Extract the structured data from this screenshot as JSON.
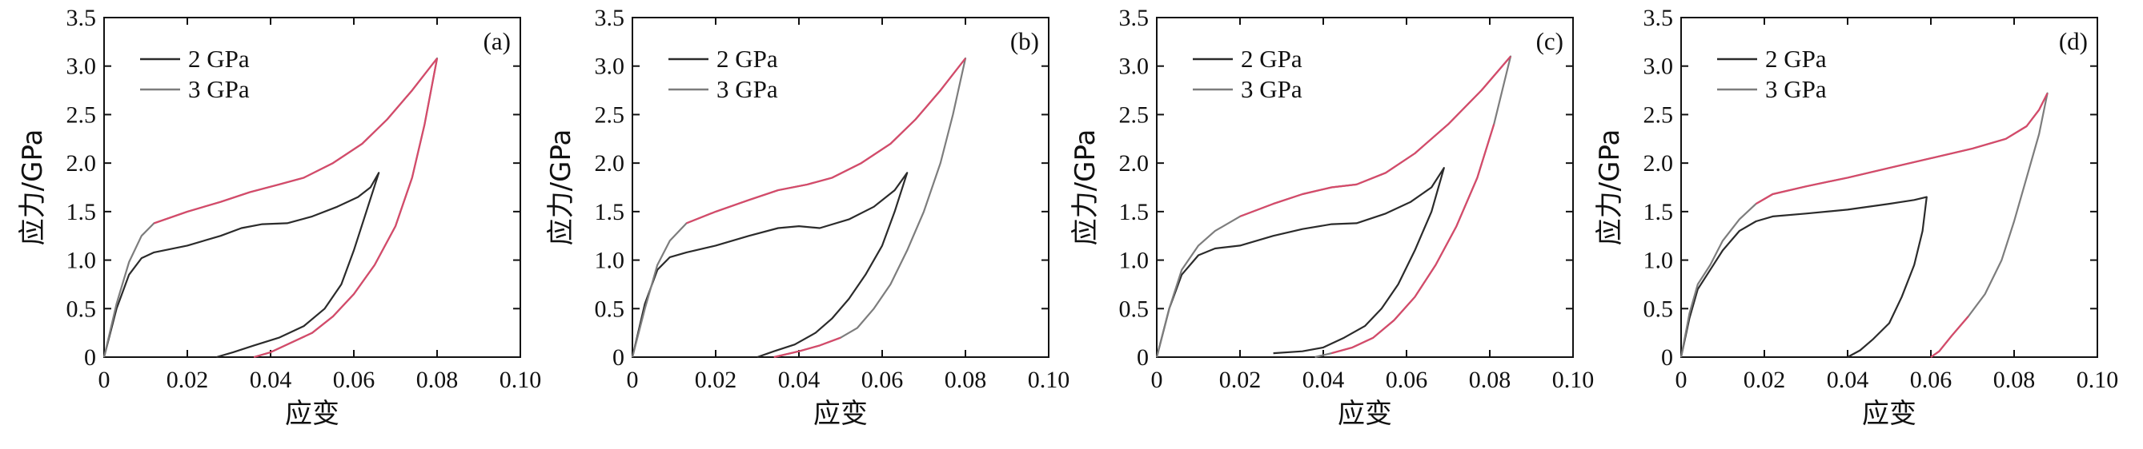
{
  "colors": {
    "black_series": "#2b2b2b",
    "gray_series": "#7d7d7d",
    "highlight": "#d64a6a",
    "frame": "#111111"
  },
  "chart_data": [
    {
      "type": "line",
      "panel_label": "(a)",
      "xlabel": "应变",
      "ylabel": "应力/GPa",
      "xlim": [
        0,
        0.1
      ],
      "ylim": [
        0,
        3.5
      ],
      "x_ticks": [
        "0",
        "0.02",
        "0.04",
        "0.06",
        "0.08",
        "0.10"
      ],
      "y_ticks": [
        "0",
        "0.5",
        "1.0",
        "1.5",
        "2.0",
        "2.5",
        "3.0",
        "3.5"
      ],
      "legend_position": "top-left",
      "series": [
        {
          "name": "2 GPa",
          "color": "#2b2b2b",
          "points": [
            [
              0,
              0
            ],
            [
              0.003,
              0.5
            ],
            [
              0.006,
              0.85
            ],
            [
              0.009,
              1.02
            ],
            [
              0.012,
              1.08
            ],
            [
              0.02,
              1.15
            ],
            [
              0.028,
              1.25
            ],
            [
              0.033,
              1.33
            ],
            [
              0.038,
              1.37
            ],
            [
              0.044,
              1.38
            ],
            [
              0.05,
              1.45
            ],
            [
              0.056,
              1.55
            ],
            [
              0.061,
              1.65
            ],
            [
              0.064,
              1.75
            ],
            [
              0.066,
              1.9
            ],
            [
              0.063,
              1.5
            ],
            [
              0.06,
              1.1
            ],
            [
              0.057,
              0.75
            ],
            [
              0.053,
              0.5
            ],
            [
              0.048,
              0.32
            ],
            [
              0.042,
              0.2
            ],
            [
              0.036,
              0.12
            ],
            [
              0.031,
              0.05
            ],
            [
              0.027,
              0
            ]
          ]
        },
        {
          "name": "3 GPa",
          "color": "#7d7d7d",
          "highlight_segments": [
            [
              0.01,
              0.08
            ],
            [
              0.08,
              0.036
            ]
          ],
          "points": [
            [
              0,
              0
            ],
            [
              0.003,
              0.55
            ],
            [
              0.006,
              0.98
            ],
            [
              0.009,
              1.25
            ],
            [
              0.012,
              1.38
            ],
            [
              0.02,
              1.5
            ],
            [
              0.028,
              1.6
            ],
            [
              0.035,
              1.7
            ],
            [
              0.042,
              1.78
            ],
            [
              0.048,
              1.85
            ],
            [
              0.055,
              2.0
            ],
            [
              0.062,
              2.2
            ],
            [
              0.068,
              2.45
            ],
            [
              0.074,
              2.75
            ],
            [
              0.08,
              3.08
            ],
            [
              0.077,
              2.4
            ],
            [
              0.074,
              1.85
            ],
            [
              0.07,
              1.35
            ],
            [
              0.065,
              0.95
            ],
            [
              0.06,
              0.65
            ],
            [
              0.055,
              0.42
            ],
            [
              0.05,
              0.25
            ],
            [
              0.045,
              0.15
            ],
            [
              0.04,
              0.05
            ],
            [
              0.036,
              0
            ]
          ]
        }
      ]
    },
    {
      "type": "line",
      "panel_label": "(b)",
      "xlabel": "应变",
      "ylabel": "应力/GPa",
      "xlim": [
        0,
        0.1
      ],
      "ylim": [
        0,
        3.5
      ],
      "x_ticks": [
        "0",
        "0.02",
        "0.04",
        "0.06",
        "0.08",
        "0.10"
      ],
      "y_ticks": [
        "0",
        "0.5",
        "1.0",
        "1.5",
        "2.0",
        "2.5",
        "3.0",
        "3.5"
      ],
      "legend_position": "top-left",
      "series": [
        {
          "name": "2 GPa",
          "color": "#2b2b2b",
          "points": [
            [
              0,
              0
            ],
            [
              0.003,
              0.55
            ],
            [
              0.006,
              0.9
            ],
            [
              0.009,
              1.03
            ],
            [
              0.013,
              1.08
            ],
            [
              0.02,
              1.15
            ],
            [
              0.028,
              1.25
            ],
            [
              0.035,
              1.33
            ],
            [
              0.04,
              1.35
            ],
            [
              0.045,
              1.33
            ],
            [
              0.052,
              1.42
            ],
            [
              0.058,
              1.55
            ],
            [
              0.063,
              1.72
            ],
            [
              0.066,
              1.9
            ],
            [
              0.063,
              1.5
            ],
            [
              0.06,
              1.15
            ],
            [
              0.056,
              0.85
            ],
            [
              0.052,
              0.6
            ],
            [
              0.048,
              0.4
            ],
            [
              0.044,
              0.25
            ],
            [
              0.039,
              0.13
            ],
            [
              0.034,
              0.06
            ],
            [
              0.03,
              0
            ]
          ]
        },
        {
          "name": "3 GPa",
          "color": "#7d7d7d",
          "highlight_segments": [
            [
              0.012,
              0.08
            ],
            [
              0.052,
              0.034
            ]
          ],
          "points": [
            [
              0,
              0
            ],
            [
              0.003,
              0.5
            ],
            [
              0.006,
              0.95
            ],
            [
              0.009,
              1.2
            ],
            [
              0.013,
              1.38
            ],
            [
              0.02,
              1.5
            ],
            [
              0.028,
              1.62
            ],
            [
              0.035,
              1.72
            ],
            [
              0.042,
              1.78
            ],
            [
              0.048,
              1.85
            ],
            [
              0.055,
              2.0
            ],
            [
              0.062,
              2.2
            ],
            [
              0.068,
              2.45
            ],
            [
              0.074,
              2.75
            ],
            [
              0.08,
              3.08
            ],
            [
              0.077,
              2.5
            ],
            [
              0.074,
              2.0
            ],
            [
              0.07,
              1.5
            ],
            [
              0.066,
              1.1
            ],
            [
              0.062,
              0.75
            ],
            [
              0.058,
              0.5
            ],
            [
              0.054,
              0.3
            ],
            [
              0.05,
              0.2
            ],
            [
              0.045,
              0.12
            ],
            [
              0.04,
              0.06
            ],
            [
              0.034,
              0
            ]
          ]
        }
      ]
    },
    {
      "type": "line",
      "panel_label": "(c)",
      "xlabel": "应变",
      "ylabel": "应力/GPa",
      "xlim": [
        0,
        0.1
      ],
      "ylim": [
        0,
        3.5
      ],
      "x_ticks": [
        "0",
        "0.02",
        "0.04",
        "0.06",
        "0.08",
        "0.10"
      ],
      "y_ticks": [
        "0",
        "0.5",
        "1.0",
        "1.5",
        "2.0",
        "2.5",
        "3.0",
        "3.5"
      ],
      "legend_position": "top-left",
      "series": [
        {
          "name": "2 GPa",
          "color": "#2b2b2b",
          "points": [
            [
              0,
              0
            ],
            [
              0.003,
              0.5
            ],
            [
              0.006,
              0.85
            ],
            [
              0.01,
              1.05
            ],
            [
              0.014,
              1.12
            ],
            [
              0.02,
              1.15
            ],
            [
              0.028,
              1.25
            ],
            [
              0.035,
              1.32
            ],
            [
              0.042,
              1.37
            ],
            [
              0.048,
              1.38
            ],
            [
              0.055,
              1.48
            ],
            [
              0.061,
              1.6
            ],
            [
              0.066,
              1.75
            ],
            [
              0.069,
              1.95
            ],
            [
              0.066,
              1.5
            ],
            [
              0.062,
              1.1
            ],
            [
              0.058,
              0.75
            ],
            [
              0.054,
              0.5
            ],
            [
              0.05,
              0.32
            ],
            [
              0.045,
              0.2
            ],
            [
              0.04,
              0.1
            ],
            [
              0.035,
              0.06
            ],
            [
              0.028,
              0.04
            ]
          ]
        },
        {
          "name": "3 GPa",
          "color": "#7d7d7d",
          "highlight_segments": [
            [
              0.018,
              0.085
            ],
            [
              0.084,
              0.04
            ]
          ],
          "points": [
            [
              0,
              0
            ],
            [
              0.003,
              0.5
            ],
            [
              0.006,
              0.9
            ],
            [
              0.01,
              1.15
            ],
            [
              0.014,
              1.3
            ],
            [
              0.02,
              1.45
            ],
            [
              0.028,
              1.58
            ],
            [
              0.035,
              1.68
            ],
            [
              0.042,
              1.75
            ],
            [
              0.048,
              1.78
            ],
            [
              0.055,
              1.9
            ],
            [
              0.062,
              2.1
            ],
            [
              0.07,
              2.4
            ],
            [
              0.078,
              2.75
            ],
            [
              0.085,
              3.1
            ],
            [
              0.081,
              2.4
            ],
            [
              0.077,
              1.85
            ],
            [
              0.072,
              1.35
            ],
            [
              0.067,
              0.95
            ],
            [
              0.062,
              0.62
            ],
            [
              0.057,
              0.38
            ],
            [
              0.052,
              0.2
            ],
            [
              0.047,
              0.1
            ],
            [
              0.042,
              0.04
            ],
            [
              0.038,
              0
            ]
          ]
        }
      ]
    },
    {
      "type": "line",
      "panel_label": "(d)",
      "xlabel": "应变",
      "ylabel": "应力/GPa",
      "xlim": [
        0,
        0.1
      ],
      "ylim": [
        0,
        3.5
      ],
      "x_ticks": [
        "0",
        "0.02",
        "0.04",
        "0.06",
        "0.08",
        "0.10"
      ],
      "y_ticks": [
        "0",
        "0.5",
        "1.0",
        "1.5",
        "2.0",
        "2.5",
        "3.0",
        "3.5"
      ],
      "legend_position": "top-left",
      "series": [
        {
          "name": "2 GPa",
          "color": "#2b2b2b",
          "points": [
            [
              0,
              0
            ],
            [
              0.002,
              0.4
            ],
            [
              0.004,
              0.7
            ],
            [
              0.007,
              0.9
            ],
            [
              0.01,
              1.1
            ],
            [
              0.014,
              1.3
            ],
            [
              0.018,
              1.4
            ],
            [
              0.022,
              1.45
            ],
            [
              0.03,
              1.48
            ],
            [
              0.04,
              1.52
            ],
            [
              0.05,
              1.58
            ],
            [
              0.056,
              1.62
            ],
            [
              0.059,
              1.65
            ],
            [
              0.058,
              1.3
            ],
            [
              0.056,
              0.95
            ],
            [
              0.053,
              0.62
            ],
            [
              0.05,
              0.35
            ],
            [
              0.046,
              0.18
            ],
            [
              0.043,
              0.07
            ],
            [
              0.04,
              0
            ]
          ]
        },
        {
          "name": "3 GPa",
          "color": "#7d7d7d",
          "highlight_segments": [
            [
              0.018,
              0.088
            ],
            [
              0.069,
              0.06
            ]
          ],
          "points": [
            [
              0,
              0
            ],
            [
              0.002,
              0.45
            ],
            [
              0.004,
              0.75
            ],
            [
              0.007,
              0.95
            ],
            [
              0.01,
              1.2
            ],
            [
              0.014,
              1.42
            ],
            [
              0.018,
              1.58
            ],
            [
              0.022,
              1.68
            ],
            [
              0.03,
              1.76
            ],
            [
              0.04,
              1.85
            ],
            [
              0.05,
              1.95
            ],
            [
              0.06,
              2.05
            ],
            [
              0.07,
              2.15
            ],
            [
              0.078,
              2.25
            ],
            [
              0.083,
              2.38
            ],
            [
              0.086,
              2.55
            ],
            [
              0.088,
              2.72
            ],
            [
              0.086,
              2.3
            ],
            [
              0.083,
              1.85
            ],
            [
              0.08,
              1.4
            ],
            [
              0.077,
              1.0
            ],
            [
              0.073,
              0.65
            ],
            [
              0.069,
              0.42
            ],
            [
              0.065,
              0.22
            ],
            [
              0.062,
              0.06
            ],
            [
              0.06,
              0
            ]
          ]
        }
      ]
    }
  ]
}
